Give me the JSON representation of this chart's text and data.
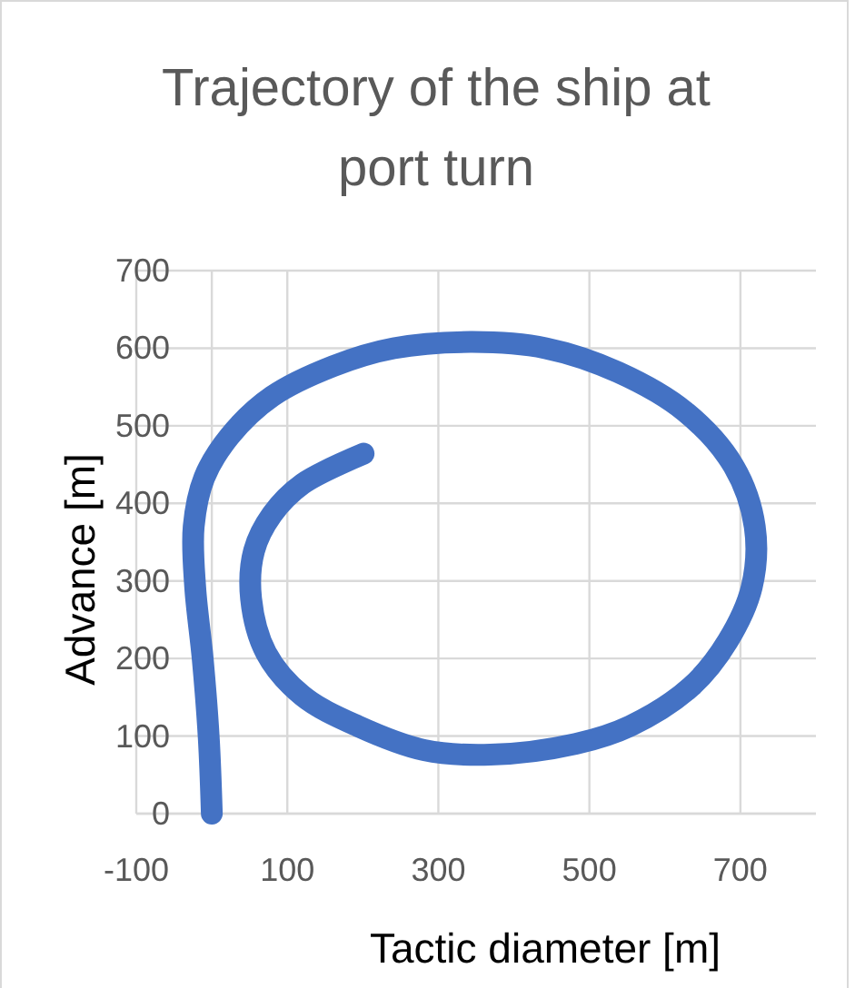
{
  "chart_data": {
    "type": "line",
    "title": "Trajectory of the ship at port turn",
    "xlabel": "Tactic diameter [m]",
    "ylabel": "Advance [m]",
    "xlim": [
      -100,
      800
    ],
    "xticks": [
      -100,
      100,
      300,
      500,
      700
    ],
    "ylim": [
      0,
      700
    ],
    "yticks": [
      0,
      100,
      200,
      300,
      400,
      500,
      600,
      700
    ],
    "grid": true,
    "line_style": "solid",
    "series": [
      {
        "color": "#4472c4",
        "x": [
          0,
          -4,
          -12,
          -22,
          -24,
          -10,
          24,
          80,
          161,
          241,
          345,
          442,
          538,
          627,
          691,
          719,
          715,
          683,
          635,
          554,
          482,
          369,
          281,
          193,
          120,
          72,
          52,
          56,
          80,
          120,
          201
        ],
        "values": [
          0,
          97,
          199,
          292,
          370,
          433,
          487,
          538,
          577,
          600,
          608,
          600,
          569,
          518,
          448,
          370,
          292,
          222,
          164,
          113,
          90,
          76,
          82,
          113,
          152,
          207,
          277,
          339,
          386,
          425,
          464
        ]
      }
    ]
  }
}
